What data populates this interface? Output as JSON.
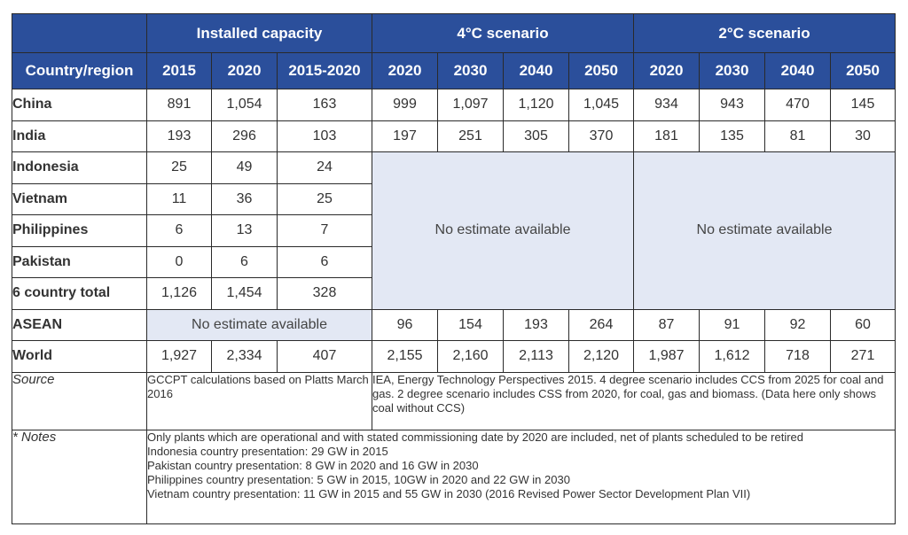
{
  "header": {
    "group_installed": "Installed capacity",
    "group_4c": "4°C scenario",
    "group_2c": "2°C scenario",
    "country_col": "Country/region",
    "columns": [
      "2015",
      "2020",
      "2015-2020",
      "2020",
      "2030",
      "2040",
      "2050",
      "2020",
      "2030",
      "2040",
      "2050"
    ]
  },
  "rows": [
    {
      "country": "China",
      "values": [
        "891",
        "1,054",
        "163",
        "999",
        "1,097",
        "1,120",
        "1,045",
        "934",
        "943",
        "470",
        "145"
      ]
    },
    {
      "country": "India",
      "values": [
        "193",
        "296",
        "103",
        "197",
        "251",
        "305",
        "370",
        "181",
        "135",
        "81",
        "30"
      ]
    },
    {
      "country": "Indonesia",
      "values": [
        "25",
        "49",
        "24"
      ]
    },
    {
      "country": "Vietnam",
      "values": [
        "11",
        "36",
        "25"
      ]
    },
    {
      "country": "Philippines",
      "values": [
        "6",
        "13",
        "7"
      ]
    },
    {
      "country": "Pakistan",
      "values": [
        "0",
        "6",
        "6"
      ]
    },
    {
      "country": "6 country total",
      "values": [
        "1,126",
        "1,454",
        "328"
      ]
    },
    {
      "country": "ASEAN",
      "values": [
        "96",
        "154",
        "193",
        "264",
        "87",
        "91",
        "92",
        "60"
      ]
    },
    {
      "country": "World",
      "values": [
        "1,927",
        "2,334",
        "407",
        "2,155",
        "2,160",
        "2,113",
        "2,120",
        "1,987",
        "1,612",
        "718",
        "271"
      ]
    }
  ],
  "no_estimate": "No estimate available",
  "source": {
    "label": "Source",
    "installed": "GCCPT calculations based on Platts March 2016",
    "scenarios": "IEA, Energy Technology Perspectives 2015. 4 degree scenario includes CCS from 2025 for coal and gas. 2 degree scenario includes CSS from 2020, for coal, gas and biomass. (Data here only shows coal without CCS)"
  },
  "notes": {
    "label": "* Notes",
    "lines": [
      "Only plants which are operational and with stated commissioning date by 2020 are included, net of plants scheduled to be retired",
      "Indonesia country presentation: 29 GW in 2015",
      "Pakistan country presentation: 8 GW in 2020 and 16 GW in 2030",
      "Philippines country presentation: 5 GW in 2015, 10GW in 2020 and 22 GW in 2030",
      "Vietnam country presentation: 11 GW in 2015 and 55 GW in 2030 (2016 Revised Power Sector Development Plan VII)"
    ]
  }
}
